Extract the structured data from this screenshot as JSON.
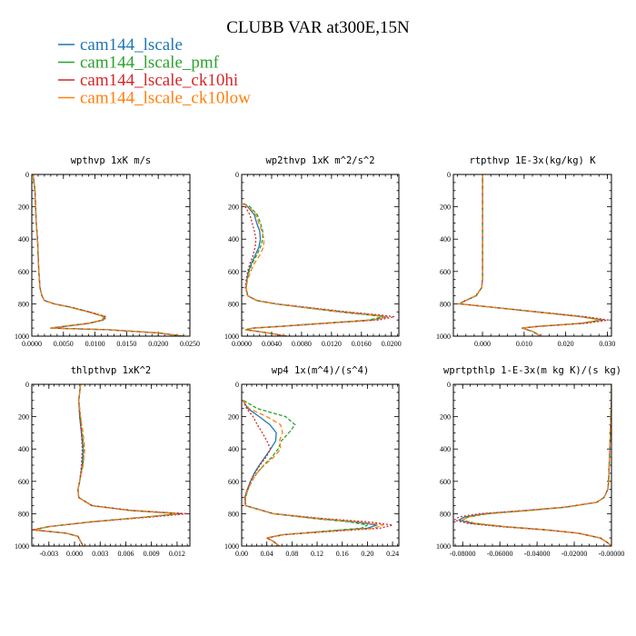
{
  "title": "CLUBB VAR at300E,15N",
  "legend": [
    {
      "name": "cam144_lscale",
      "color": "#1f77b4",
      "dash": ""
    },
    {
      "name": "cam144_lscale_pmf",
      "color": "#2ca02c",
      "dash": "4,2"
    },
    {
      "name": "cam144_lscale_ck10hi",
      "color": "#d62728",
      "dash": "2,2"
    },
    {
      "name": "cam144_lscale_ck10low",
      "color": "#ff7f0e",
      "dash": "5,3"
    }
  ],
  "chart_data": [
    {
      "type": "line",
      "title": "wpthvp  1xK m/s",
      "xlim": [
        0,
        0.025
      ],
      "ylim": [
        0,
        1000
      ],
      "xticks": [
        "0.0000",
        "0.0050",
        "0.0100",
        "0.0150",
        "0.0200",
        "0.0250"
      ],
      "xtick_values": [
        0,
        0.005,
        0.01,
        0.015,
        0.02,
        0.025
      ],
      "yticks": [
        "0",
        "200",
        "400",
        "600",
        "800",
        "1000"
      ],
      "y": [
        0,
        100,
        200,
        300,
        400,
        500,
        600,
        650,
        700,
        750,
        780,
        800,
        820,
        850,
        880,
        900,
        920,
        940,
        950,
        960,
        980,
        1000
      ],
      "series": [
        {
          "name": "cam144_lscale",
          "values": [
            0.0002,
            0.0005,
            0.0006,
            0.0007,
            0.0009,
            0.001,
            0.0011,
            0.0012,
            0.0013,
            0.0016,
            0.002,
            0.0035,
            0.006,
            0.009,
            0.0115,
            0.0112,
            0.009,
            0.005,
            0.003,
            0.012,
            0.02,
            0.024
          ]
        },
        {
          "name": "cam144_lscale_pmf",
          "values": [
            0.0002,
            0.0005,
            0.0006,
            0.0007,
            0.0009,
            0.001,
            0.0011,
            0.0012,
            0.0013,
            0.0016,
            0.002,
            0.0035,
            0.006,
            0.009,
            0.0116,
            0.0113,
            0.0091,
            0.005,
            0.003,
            0.012,
            0.02,
            0.024
          ]
        },
        {
          "name": "cam144_lscale_ck10hi",
          "values": [
            0.0002,
            0.0005,
            0.0006,
            0.0007,
            0.0009,
            0.001,
            0.0011,
            0.0012,
            0.0013,
            0.0016,
            0.002,
            0.0036,
            0.0062,
            0.0092,
            0.0118,
            0.0114,
            0.0092,
            0.0052,
            0.003,
            0.012,
            0.02,
            0.024
          ]
        },
        {
          "name": "cam144_lscale_ck10low",
          "values": [
            0.0002,
            0.0005,
            0.0006,
            0.0007,
            0.0009,
            0.001,
            0.0011,
            0.0012,
            0.0013,
            0.0016,
            0.002,
            0.0035,
            0.006,
            0.0089,
            0.0114,
            0.0111,
            0.0089,
            0.005,
            0.003,
            0.012,
            0.02,
            0.024
          ]
        }
      ]
    },
    {
      "type": "line",
      "title": "wp2thvp  1xK m^2/s^2",
      "xlim": [
        0,
        0.021
      ],
      "ylim": [
        0,
        1000
      ],
      "xticks": [
        "0.0000",
        "0.0040",
        "0.0080",
        "0.0120",
        "0.0160",
        "0.0200"
      ],
      "xtick_values": [
        0,
        0.004,
        0.008,
        0.012,
        0.016,
        0.02
      ],
      "yticks": [
        "0",
        "200",
        "400",
        "600",
        "800",
        "1000"
      ],
      "y": [
        180,
        200,
        250,
        300,
        350,
        400,
        450,
        500,
        550,
        600,
        650,
        700,
        750,
        780,
        800,
        820,
        850,
        870,
        880,
        900,
        920,
        940,
        950,
        960,
        980,
        1000
      ],
      "series": [
        {
          "name": "cam144_lscale",
          "values": [
            0.0003,
            0.0008,
            0.0017,
            0.002,
            0.0024,
            0.0025,
            0.0023,
            0.0018,
            0.0013,
            0.0009,
            0.0007,
            0.0006,
            0.0008,
            0.002,
            0.0045,
            0.008,
            0.0135,
            0.0178,
            0.0195,
            0.0175,
            0.011,
            0.005,
            0.0015,
            0.0005,
            0.0035,
            0.006
          ]
        },
        {
          "name": "cam144_lscale_pmf",
          "values": [
            0.0003,
            0.0011,
            0.0021,
            0.0025,
            0.0028,
            0.0028,
            0.0025,
            0.002,
            0.0014,
            0.001,
            0.0007,
            0.0006,
            0.0008,
            0.002,
            0.0044,
            0.0078,
            0.013,
            0.0172,
            0.019,
            0.017,
            0.0108,
            0.005,
            0.0015,
            0.0005,
            0.0035,
            0.006
          ]
        },
        {
          "name": "cam144_lscale_ck10hi",
          "values": [
            0.0002,
            0.0005,
            0.0011,
            0.0014,
            0.0017,
            0.0019,
            0.0018,
            0.0015,
            0.0011,
            0.0008,
            0.0006,
            0.0005,
            0.0008,
            0.0021,
            0.0047,
            0.0085,
            0.0142,
            0.0187,
            0.0204,
            0.0183,
            0.0115,
            0.0052,
            0.0015,
            0.0005,
            0.0035,
            0.006
          ]
        },
        {
          "name": "cam144_lscale_ck10low",
          "values": [
            0.0003,
            0.0009,
            0.0019,
            0.0023,
            0.0027,
            0.003,
            0.0029,
            0.0024,
            0.0017,
            0.0012,
            0.0008,
            0.0006,
            0.0008,
            0.002,
            0.0045,
            0.0079,
            0.0133,
            0.0176,
            0.0194,
            0.0175,
            0.011,
            0.005,
            0.0015,
            0.0005,
            0.0035,
            0.006
          ]
        }
      ]
    },
    {
      "type": "line",
      "title": "rtpthvp  1E-3x(kg/kg) K",
      "xlim": [
        -0.007,
        0.031
      ],
      "ylim": [
        0,
        1000
      ],
      "xticks": [
        "0.000",
        "0.010",
        "0.020",
        "0.030"
      ],
      "xtick_values": [
        0,
        0.01,
        0.02,
        0.03
      ],
      "yticks": [
        "0",
        "200",
        "400",
        "600",
        "800",
        "1000"
      ],
      "y": [
        0,
        100,
        200,
        300,
        400,
        500,
        600,
        650,
        700,
        750,
        780,
        800,
        820,
        850,
        880,
        900,
        920,
        940,
        950,
        970,
        1000
      ],
      "series": [
        {
          "name": "cam144_lscale",
          "values": [
            0,
            0,
            0,
            0,
            0,
            0,
            0,
            0,
            -0.0002,
            -0.0015,
            -0.004,
            -0.0055,
            0.002,
            0.013,
            0.024,
            0.029,
            0.024,
            0.013,
            0.0095,
            0.012,
            0.014
          ]
        },
        {
          "name": "cam144_lscale_pmf",
          "values": [
            0,
            0,
            0,
            0,
            0,
            0,
            0,
            0,
            -0.0002,
            -0.0015,
            -0.004,
            -0.0055,
            0.002,
            0.0128,
            0.0236,
            0.0285,
            0.0236,
            0.013,
            0.0095,
            0.012,
            0.014
          ]
        },
        {
          "name": "cam144_lscale_ck10hi",
          "values": [
            0,
            0,
            0,
            0,
            0,
            0,
            0,
            0,
            -0.0002,
            -0.0016,
            -0.0042,
            -0.0057,
            0.0022,
            0.0135,
            0.0248,
            0.0302,
            0.025,
            0.0135,
            0.0097,
            0.012,
            0.014
          ]
        },
        {
          "name": "cam144_lscale_ck10low",
          "values": [
            0,
            0,
            0,
            0,
            0,
            0,
            0,
            0,
            -0.0002,
            -0.0015,
            -0.004,
            -0.0055,
            0.002,
            0.0128,
            0.0235,
            0.0284,
            0.0235,
            0.013,
            0.0095,
            0.012,
            0.014
          ]
        }
      ]
    },
    {
      "type": "line",
      "title": "thlpthvp  1xK^2",
      "xlim": [
        -0.005,
        0.0135
      ],
      "ylim": [
        0,
        1000
      ],
      "xticks": [
        "-0.003",
        "0.000",
        "0.003",
        "0.006",
        "0.009",
        "0.012"
      ],
      "xtick_values": [
        -0.003,
        0,
        0.003,
        0.006,
        0.009,
        0.012
      ],
      "yticks": [
        "0",
        "200",
        "400",
        "600",
        "800",
        "1000"
      ],
      "y": [
        0,
        50,
        100,
        200,
        300,
        400,
        500,
        600,
        650,
        700,
        750,
        780,
        800,
        820,
        850,
        880,
        900,
        920,
        940,
        960,
        980,
        1000
      ],
      "series": [
        {
          "name": "cam144_lscale",
          "values": [
            0.0007,
            0.0006,
            0.0005,
            0.0006,
            0.0008,
            0.001,
            0.0009,
            0.0006,
            0.0004,
            0.0005,
            0.002,
            0.0065,
            0.0125,
            0.0085,
            0.002,
            -0.003,
            -0.0048,
            -0.001,
            0.0004,
            0.0006,
            0.0008,
            0.001
          ]
        },
        {
          "name": "cam144_lscale_pmf",
          "values": [
            0.0007,
            0.0006,
            0.0005,
            0.0007,
            0.0009,
            0.0011,
            0.001,
            0.0006,
            0.0004,
            0.0005,
            0.002,
            0.0064,
            0.0122,
            0.0083,
            0.002,
            -0.003,
            -0.0047,
            -0.001,
            0.0004,
            0.0006,
            0.0008,
            0.001
          ]
        },
        {
          "name": "cam144_lscale_ck10hi",
          "values": [
            0.0007,
            0.0006,
            0.0005,
            0.0006,
            0.0008,
            0.0009,
            0.0008,
            0.0006,
            0.0004,
            0.0005,
            0.0021,
            0.0068,
            0.0132,
            0.009,
            0.0021,
            -0.0031,
            -0.005,
            -0.001,
            0.0004,
            0.0006,
            0.0008,
            0.001
          ]
        },
        {
          "name": "cam144_lscale_ck10low",
          "values": [
            0.0007,
            0.0006,
            0.0005,
            0.0007,
            0.001,
            0.0012,
            0.001,
            0.0006,
            0.0004,
            0.0005,
            0.002,
            0.0064,
            0.0121,
            0.0083,
            0.002,
            -0.003,
            -0.0047,
            -0.001,
            0.0004,
            0.0006,
            0.0008,
            0.001
          ]
        }
      ]
    },
    {
      "type": "line",
      "title": "wp4  1x(m^4)/(s^4)",
      "xlim": [
        0,
        0.25
      ],
      "ylim": [
        0,
        1000
      ],
      "xticks": [
        "0.00",
        "0.04",
        "0.08",
        "0.12",
        "0.16",
        "0.20",
        "0.24"
      ],
      "xtick_values": [
        0,
        0.04,
        0.08,
        0.12,
        0.16,
        0.2,
        0.24
      ],
      "yticks": [
        "0",
        "200",
        "400",
        "600",
        "800",
        "1000"
      ],
      "y": [
        100,
        150,
        200,
        250,
        300,
        350,
        400,
        450,
        500,
        550,
        600,
        650,
        700,
        750,
        800,
        830,
        850,
        870,
        890,
        910,
        930,
        950,
        970,
        1000
      ],
      "series": [
        {
          "name": "cam144_lscale",
          "values": [
            0.002,
            0.01,
            0.028,
            0.045,
            0.055,
            0.054,
            0.046,
            0.037,
            0.028,
            0.02,
            0.014,
            0.009,
            0.005,
            0.006,
            0.05,
            0.12,
            0.18,
            0.215,
            0.2,
            0.13,
            0.065,
            0.04,
            0.05,
            0.06
          ]
        },
        {
          "name": "cam144_lscale_pmf",
          "values": [
            0.003,
            0.025,
            0.07,
            0.085,
            0.075,
            0.063,
            0.058,
            0.048,
            0.035,
            0.024,
            0.016,
            0.01,
            0.006,
            0.006,
            0.05,
            0.115,
            0.17,
            0.2,
            0.19,
            0.125,
            0.065,
            0.04,
            0.05,
            0.06
          ]
        },
        {
          "name": "cam144_lscale_ck10hi",
          "values": [
            0.002,
            0.008,
            0.018,
            0.025,
            0.033,
            0.04,
            0.046,
            0.039,
            0.029,
            0.021,
            0.014,
            0.009,
            0.005,
            0.006,
            0.052,
            0.13,
            0.2,
            0.24,
            0.22,
            0.14,
            0.068,
            0.04,
            0.05,
            0.06
          ]
        },
        {
          "name": "cam144_lscale_ck10low",
          "values": [
            0.002,
            0.012,
            0.04,
            0.062,
            0.065,
            0.06,
            0.062,
            0.051,
            0.036,
            0.024,
            0.016,
            0.01,
            0.006,
            0.006,
            0.05,
            0.12,
            0.185,
            0.225,
            0.21,
            0.135,
            0.066,
            0.04,
            0.05,
            0.06
          ]
        }
      ]
    },
    {
      "type": "line",
      "title": "wprtpthlp  1-E-3x(m kg K)/(s kg)",
      "xlim": [
        -0.085,
        0
      ],
      "ylim": [
        0,
        1000
      ],
      "xticks": [
        "-0.08000",
        "-0.06000",
        "-0.04000",
        "-0.02000",
        "-0.00000"
      ],
      "xtick_values": [
        -0.08,
        -0.06,
        -0.04,
        -0.02,
        0
      ],
      "yticks": [
        "0",
        "200",
        "400",
        "600",
        "800",
        "1000"
      ],
      "y": [
        0,
        100,
        200,
        300,
        400,
        500,
        600,
        650,
        700,
        730,
        760,
        780,
        800,
        820,
        840,
        860,
        880,
        900,
        920,
        950,
        980,
        1000
      ],
      "series": [
        {
          "name": "cam144_lscale",
          "values": [
            0,
            0,
            -0.0003,
            -0.0006,
            -0.0009,
            -0.0012,
            -0.0015,
            -0.002,
            -0.004,
            -0.008,
            -0.025,
            -0.045,
            -0.068,
            -0.079,
            -0.082,
            -0.075,
            -0.058,
            -0.035,
            -0.018,
            -0.006,
            -0.002,
            0
          ]
        },
        {
          "name": "cam144_lscale_pmf",
          "values": [
            0,
            0,
            -0.0003,
            -0.0006,
            -0.0009,
            -0.0012,
            -0.0015,
            -0.002,
            -0.004,
            -0.008,
            -0.025,
            -0.044,
            -0.066,
            -0.077,
            -0.08,
            -0.073,
            -0.057,
            -0.035,
            -0.018,
            -0.006,
            -0.002,
            0
          ]
        },
        {
          "name": "cam144_lscale_ck10hi",
          "values": [
            0,
            0,
            -0.0003,
            -0.0006,
            -0.0009,
            -0.0012,
            -0.0015,
            -0.002,
            -0.004,
            -0.008,
            -0.026,
            -0.047,
            -0.071,
            -0.082,
            -0.0845,
            -0.077,
            -0.06,
            -0.036,
            -0.018,
            -0.006,
            -0.002,
            0
          ]
        },
        {
          "name": "cam144_lscale_ck10low",
          "values": [
            0,
            0,
            -0.0003,
            -0.0006,
            -0.0009,
            -0.0012,
            -0.0015,
            -0.002,
            -0.004,
            -0.008,
            -0.025,
            -0.044,
            -0.066,
            -0.077,
            -0.08,
            -0.073,
            -0.057,
            -0.035,
            -0.018,
            -0.006,
            -0.002,
            0
          ]
        }
      ]
    }
  ]
}
